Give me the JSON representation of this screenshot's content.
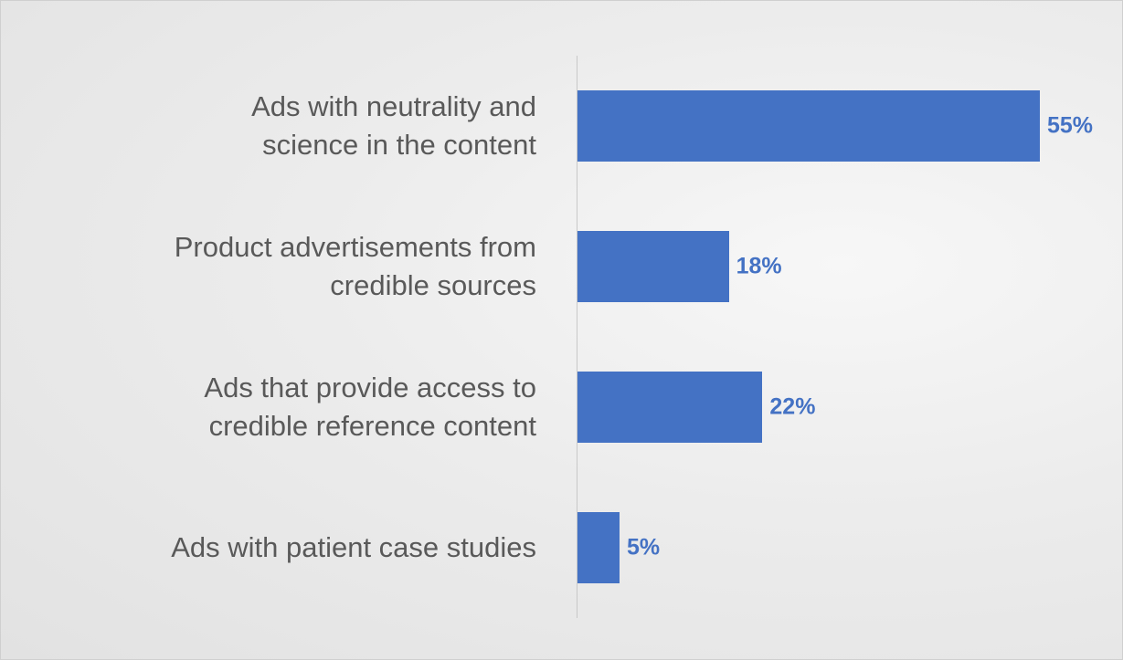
{
  "chart_data": {
    "type": "hbar",
    "categories": [
      "Ads with neutrality and\nscience in the content",
      "Product advertisements from\ncredible sources",
      "Ads that provide access to\ncredible reference content",
      "Ads with patient case studies"
    ],
    "values": [
      55,
      18,
      22,
      5
    ],
    "value_labels": [
      "55%",
      "18%",
      "22%",
      "5%"
    ],
    "color": "#4472c4",
    "xlim": [
      0,
      60
    ]
  }
}
